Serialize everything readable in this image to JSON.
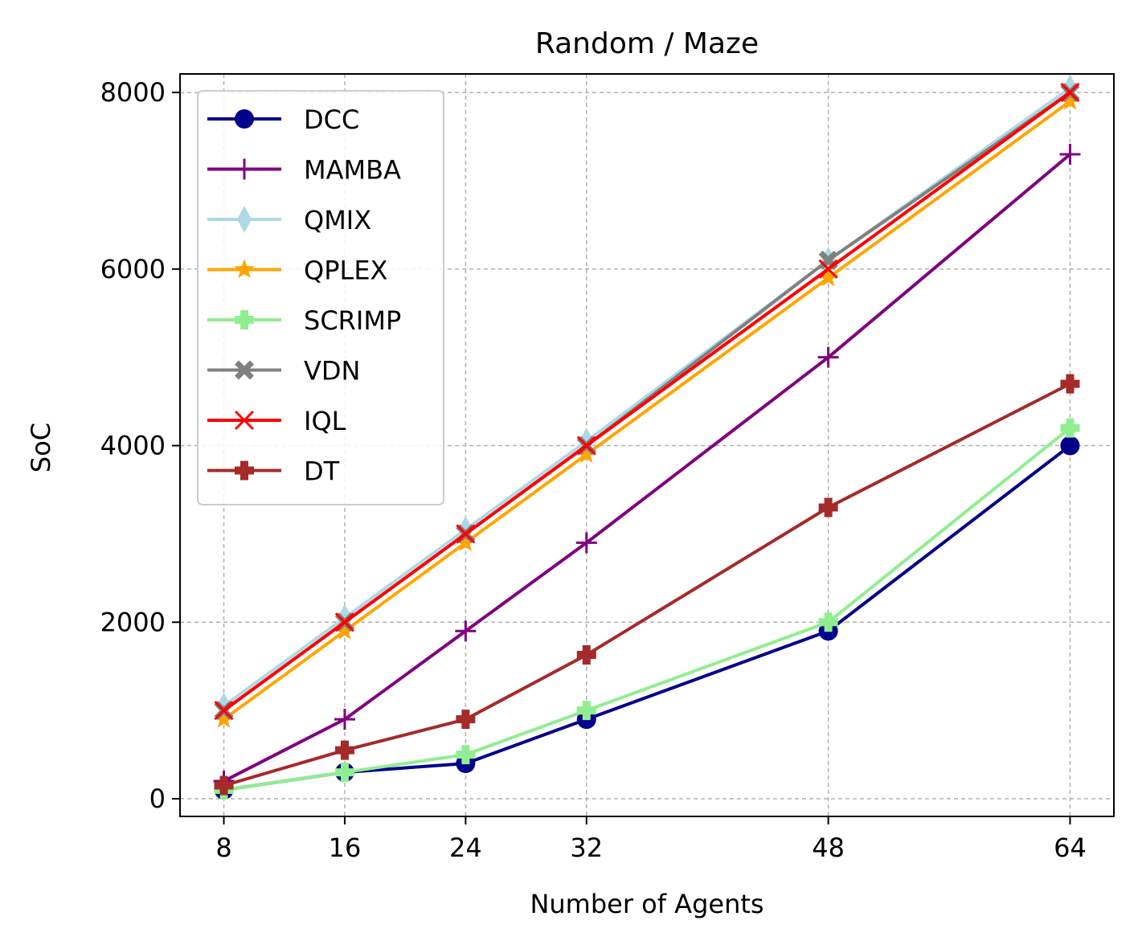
{
  "chart_data": {
    "type": "line",
    "title": "Random / Maze",
    "xlabel": "Number of Agents",
    "ylabel": "SoC",
    "x": [
      8,
      16,
      24,
      32,
      48,
      64
    ],
    "x_ticks": [
      8,
      16,
      24,
      32,
      48,
      64
    ],
    "y_ticks": [
      0,
      2000,
      4000,
      6000,
      8000
    ],
    "xlim": [
      5.1,
      66.9
    ],
    "ylim": [
      -200,
      8210
    ],
    "grid": true,
    "legend_position": "upper-left",
    "series": [
      {
        "name": "DCC",
        "color": "#00008b",
        "marker": "circle",
        "values": [
          100,
          300,
          400,
          900,
          1900,
          4000
        ]
      },
      {
        "name": "MAMBA",
        "color": "#800080",
        "marker": "plus",
        "values": [
          200,
          900,
          1900,
          2900,
          5000,
          7300
        ]
      },
      {
        "name": "QMIX",
        "color": "#add8e6",
        "marker": "thin-diamond",
        "values": [
          1050,
          2050,
          3050,
          4050,
          6100,
          8050
        ]
      },
      {
        "name": "QPLEX",
        "color": "#ffa500",
        "marker": "star",
        "values": [
          900,
          1900,
          2900,
          3900,
          5900,
          7900
        ]
      },
      {
        "name": "SCRIMP",
        "color": "#90ee90",
        "marker": "plus-filled",
        "values": [
          100,
          300,
          500,
          1000,
          2000,
          4200
        ]
      },
      {
        "name": "VDN",
        "color": "#808080",
        "marker": "x-filled",
        "values": [
          1000,
          2000,
          3000,
          4000,
          6100,
          8000
        ]
      },
      {
        "name": "IQL",
        "color": "#ff0000",
        "marker": "x",
        "values": [
          1000,
          2000,
          3000,
          4000,
          6000,
          8000
        ]
      },
      {
        "name": "DT",
        "color": "#a52a2a",
        "marker": "plus-filled",
        "values": [
          150,
          550,
          900,
          1630,
          3300,
          4700
        ]
      }
    ]
  }
}
